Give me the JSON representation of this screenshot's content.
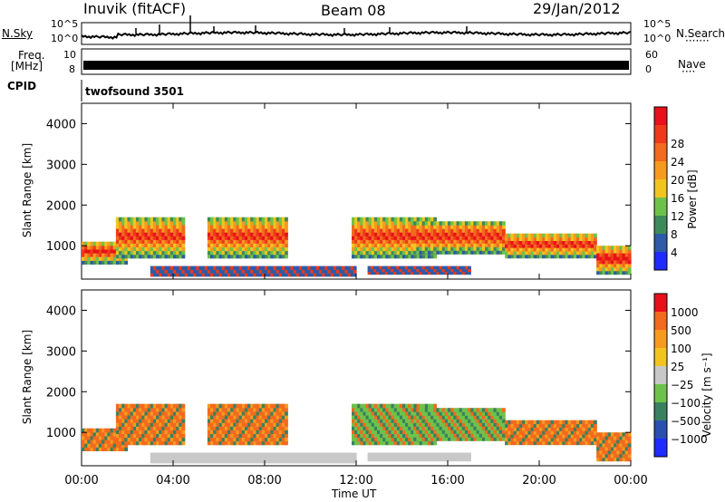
{
  "header": {
    "station": "Inuvik (fitACF)",
    "beam": "Beam 08",
    "date": "29/Jan/2012"
  },
  "side_labels": {
    "nsky": "N.Sky",
    "freq": "Freq.",
    "mhz": "[MHz]",
    "cpid": "CPID",
    "nsearch": "N.Search",
    "nsearch_dots": "·······",
    "nave": "Nave",
    "nave_dots": "····"
  },
  "cpid_text": "twofsound 3501",
  "chart_data": [
    {
      "type": "line",
      "name": "noise-panel",
      "left_ticks": [
        "10^5",
        "10^0"
      ],
      "right_ticks": [
        "10^5",
        "10^0"
      ]
    },
    {
      "type": "line",
      "name": "freq-nave-panel",
      "left_ticks": [
        "10",
        "8"
      ],
      "right_ticks": [
        "60",
        "0"
      ]
    },
    {
      "type": "heatmap",
      "name": "power",
      "ylabel": "Slant Range [km]",
      "yticks": [
        1000,
        2000,
        3000,
        4000
      ],
      "ylim": [
        180,
        4500
      ],
      "xticks": [
        "00:00",
        "04:00",
        "08:00",
        "12:00",
        "16:00",
        "20:00",
        "00:00"
      ],
      "xlim_hours": [
        0,
        24
      ],
      "colorbar_label": "Power [dB]",
      "colorbar_ticks": [
        "4",
        "8",
        "12",
        "16",
        "20",
        "24",
        "28"
      ],
      "colorbar_colors": [
        "#1f2bff",
        "#2e5aa8",
        "#3f8a5a",
        "#6ec24a",
        "#f2c420",
        "#f79a20",
        "#f26a1e",
        "#ee3a18",
        "#e8101a"
      ]
    },
    {
      "type": "heatmap",
      "name": "velocity",
      "ylabel": "Slant Range [km]",
      "yticks": [
        1000,
        2000,
        3000,
        4000
      ],
      "ylim": [
        180,
        4500
      ],
      "xticks": [
        "00:00",
        "04:00",
        "08:00",
        "12:00",
        "16:00",
        "20:00",
        "00:00"
      ],
      "xlim_hours": [
        0,
        24
      ],
      "xlabel": "Time UT",
      "colorbar_label": "Velocity [m s⁻¹]",
      "colorbar_ticks": [
        "1000",
        "500",
        "100",
        "25",
        "−25",
        "−100",
        "−500",
        "−1000"
      ],
      "colorbar_colors": [
        "#1f2bff",
        "#2a4fb0",
        "#3a8060",
        "#6ec24a",
        "#c8c8c8",
        "#f2c420",
        "#f79a20",
        "#f26a1e",
        "#e8101a"
      ]
    }
  ]
}
